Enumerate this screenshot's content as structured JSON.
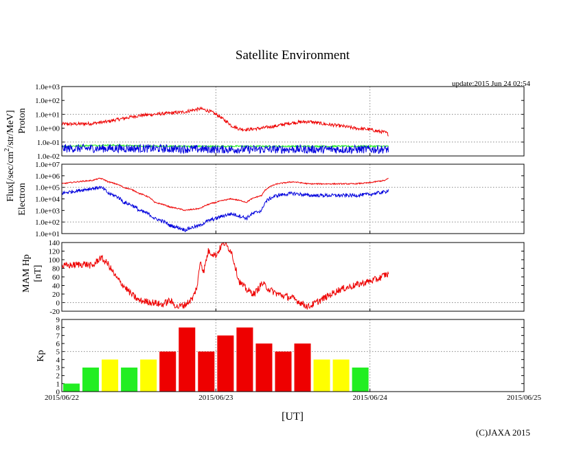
{
  "title": "Satellite Environment",
  "update": "update:2015 Jun 24 02:54",
  "copyright": "(C)JAXA 2015",
  "xlabel": "[UT]",
  "x_ticks": [
    "2015/06/22",
    "2015/06/23",
    "2015/06/24",
    "2015/06/25"
  ],
  "flux_label_main": "Flux[/sec/cm",
  "flux_label_sup": "2",
  "flux_label_end": "/str/MeV]",
  "colors": {
    "red": "#ee0000",
    "blue": "#0000dd",
    "green": "#22ee22",
    "yellow": "#ffff00",
    "grid": "#888888"
  },
  "chart_data": [
    {
      "type": "line",
      "name": "proton",
      "ylabel": "Proton",
      "yscale": "log",
      "ylim": [
        0.01,
        1000
      ],
      "y_ticks": [
        "1.0e-02",
        "1.0e-01",
        "1.0e+00",
        "1.0e+01",
        "1.0e+02",
        "1.0e+03"
      ],
      "x_range_days": [
        0,
        3
      ],
      "series": [
        {
          "name": "proton-high",
          "color": "red",
          "noise": 0.12,
          "points": [
            [
              0,
              2
            ],
            [
              0.1,
              2
            ],
            [
              0.2,
              2.2
            ],
            [
              0.3,
              3
            ],
            [
              0.4,
              5
            ],
            [
              0.5,
              8
            ],
            [
              0.6,
              10
            ],
            [
              0.7,
              12
            ],
            [
              0.8,
              15
            ],
            [
              0.85,
              20
            ],
            [
              0.9,
              25
            ],
            [
              0.95,
              18
            ],
            [
              1.0,
              10
            ],
            [
              1.05,
              4
            ],
            [
              1.1,
              1.5
            ],
            [
              1.15,
              0.9
            ],
            [
              1.2,
              0.8
            ],
            [
              1.3,
              1.0
            ],
            [
              1.4,
              1.5
            ],
            [
              1.5,
              2.5
            ],
            [
              1.6,
              3.0
            ],
            [
              1.7,
              2.0
            ],
            [
              1.8,
              1.5
            ],
            [
              1.9,
              1.0
            ],
            [
              2.0,
              0.8
            ],
            [
              2.05,
              0.6
            ],
            [
              2.1,
              0.5
            ],
            [
              2.12,
              0.35
            ]
          ]
        },
        {
          "name": "proton-mid",
          "color": "green",
          "noise": 0.06,
          "points": [
            [
              0,
              0.05
            ],
            [
              0.3,
              0.06
            ],
            [
              0.6,
              0.05
            ],
            [
              1.0,
              0.05
            ],
            [
              1.5,
              0.05
            ],
            [
              2.12,
              0.05
            ]
          ]
        },
        {
          "name": "proton-low",
          "color": "blue",
          "noise": 0.3,
          "points": [
            [
              0,
              0.035
            ],
            [
              0.5,
              0.035
            ],
            [
              1.0,
              0.03
            ],
            [
              1.5,
              0.03
            ],
            [
              2.12,
              0.03
            ]
          ]
        }
      ]
    },
    {
      "type": "line",
      "name": "electron",
      "ylabel": "Electron",
      "yscale": "log",
      "ylim": [
        10,
        10000000
      ],
      "y_ticks": [
        "1.0e+01",
        "1.0e+02",
        "1.0e+03",
        "1.0e+04",
        "1.0e+05",
        "1.0e+06",
        "1.0e+07"
      ],
      "x_range_days": [
        0,
        3
      ],
      "series": [
        {
          "name": "electron-low-energy",
          "color": "red",
          "noise": 0.05,
          "points": [
            [
              0,
              200000
            ],
            [
              0.1,
              300000
            ],
            [
              0.2,
              400000
            ],
            [
              0.25,
              600000
            ],
            [
              0.3,
              300000
            ],
            [
              0.4,
              100000
            ],
            [
              0.5,
              30000
            ],
            [
              0.6,
              5000
            ],
            [
              0.7,
              2000
            ],
            [
              0.8,
              1000
            ],
            [
              0.9,
              1500
            ],
            [
              1.0,
              5000
            ],
            [
              1.1,
              10000
            ],
            [
              1.2,
              5000
            ],
            [
              1.3,
              20000
            ],
            [
              1.4,
              200000
            ],
            [
              1.5,
              300000
            ],
            [
              1.6,
              200000
            ],
            [
              1.7,
              200000
            ],
            [
              1.8,
              200000
            ],
            [
              1.9,
              200000
            ],
            [
              2.0,
              250000
            ],
            [
              2.1,
              400000
            ],
            [
              2.12,
              600000
            ]
          ]
        },
        {
          "name": "electron-high-energy",
          "color": "blue",
          "noise": 0.15,
          "points": [
            [
              0,
              30000
            ],
            [
              0.1,
              50000
            ],
            [
              0.2,
              80000
            ],
            [
              0.25,
              100000
            ],
            [
              0.3,
              30000
            ],
            [
              0.4,
              5000
            ],
            [
              0.5,
              1000
            ],
            [
              0.6,
              200
            ],
            [
              0.7,
              50
            ],
            [
              0.8,
              20
            ],
            [
              0.9,
              50
            ],
            [
              1.0,
              200
            ],
            [
              1.1,
              500
            ],
            [
              1.2,
              200
            ],
            [
              1.3,
              1000
            ],
            [
              1.4,
              20000
            ],
            [
              1.5,
              30000
            ],
            [
              1.6,
              20000
            ],
            [
              1.7,
              20000
            ],
            [
              1.8,
              20000
            ],
            [
              1.9,
              20000
            ],
            [
              2.0,
              25000
            ],
            [
              2.1,
              40000
            ],
            [
              2.12,
              60000
            ]
          ]
        }
      ]
    },
    {
      "type": "line",
      "name": "mam-hp",
      "ylabel": "MAM Hp",
      "ylabel2": "[nT]",
      "yscale": "linear",
      "ylim": [
        -20,
        140
      ],
      "y_ticks": [
        "-20",
        "0",
        "20",
        "40",
        "60",
        "80",
        "100",
        "120",
        "140"
      ],
      "x_range_days": [
        0,
        3
      ],
      "series": [
        {
          "name": "hp",
          "color": "red",
          "noise": 2,
          "points": [
            [
              0,
              85
            ],
            [
              0.15,
              90
            ],
            [
              0.2,
              85
            ],
            [
              0.25,
              105
            ],
            [
              0.3,
              90
            ],
            [
              0.35,
              60
            ],
            [
              0.4,
              40
            ],
            [
              0.45,
              20
            ],
            [
              0.5,
              5
            ],
            [
              0.6,
              0
            ],
            [
              0.65,
              -5
            ],
            [
              0.7,
              5
            ],
            [
              0.75,
              -10
            ],
            [
              0.8,
              -5
            ],
            [
              0.85,
              10
            ],
            [
              0.88,
              40
            ],
            [
              0.9,
              100
            ],
            [
              0.92,
              70
            ],
            [
              0.95,
              120
            ],
            [
              1.0,
              110
            ],
            [
              1.05,
              140
            ],
            [
              1.1,
              120
            ],
            [
              1.15,
              50
            ],
            [
              1.2,
              30
            ],
            [
              1.25,
              20
            ],
            [
              1.3,
              45
            ],
            [
              1.35,
              30
            ],
            [
              1.4,
              20
            ],
            [
              1.5,
              10
            ],
            [
              1.6,
              -10
            ],
            [
              1.7,
              10
            ],
            [
              1.8,
              30
            ],
            [
              1.9,
              40
            ],
            [
              2.0,
              50
            ],
            [
              2.05,
              55
            ],
            [
              2.1,
              65
            ],
            [
              2.12,
              66
            ]
          ]
        }
      ]
    },
    {
      "type": "bar",
      "name": "kp",
      "ylabel": "Kp",
      "yscale": "linear",
      "ylim": [
        0,
        9
      ],
      "y_ticks": [
        "0",
        "1",
        "2",
        "3",
        "4",
        "5",
        "6",
        "7",
        "8",
        "9"
      ],
      "x_range_days": [
        0,
        3
      ],
      "bar_interval_hours": 3,
      "values": [
        1,
        3,
        4,
        3,
        4,
        5,
        8,
        5,
        7,
        8,
        6,
        5,
        6,
        4,
        4,
        3
      ],
      "colors": [
        "green",
        "green",
        "yellow",
        "green",
        "yellow",
        "red",
        "red",
        "red",
        "red",
        "red",
        "red",
        "red",
        "red",
        "yellow",
        "yellow",
        "green"
      ]
    }
  ]
}
